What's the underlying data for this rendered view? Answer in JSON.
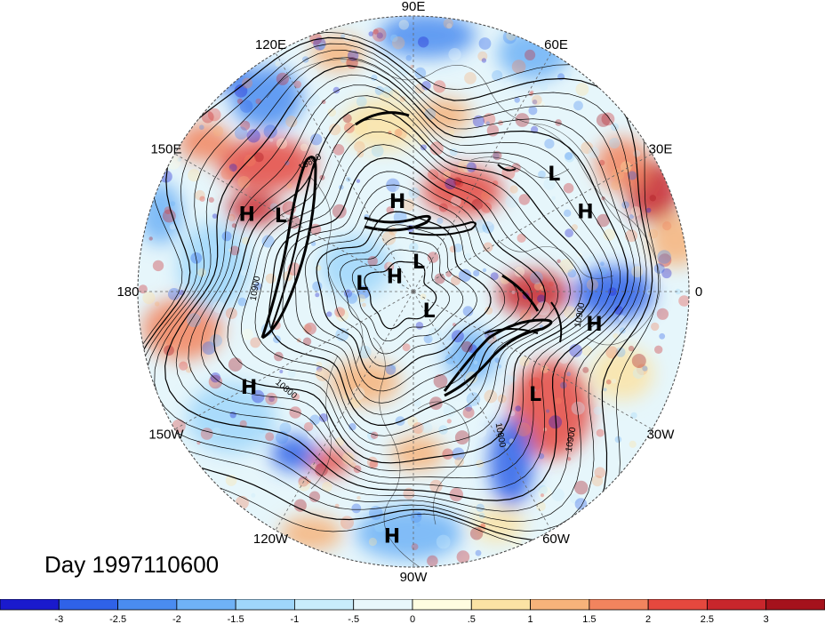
{
  "title": "Day 1997110600",
  "longitude_labels": [
    "90E",
    "60E",
    "30E",
    "0",
    "30W",
    "60W",
    "90W",
    "120W",
    "150W",
    "180",
    "150E",
    "120E"
  ],
  "pressure_centers": [
    {
      "type": "H",
      "lon": 100,
      "lat": 60
    },
    {
      "type": "L",
      "lon": 40,
      "lat": 30
    },
    {
      "type": "H",
      "lon": 25,
      "lat": 28
    },
    {
      "type": "L",
      "lon": 150,
      "lat": 40
    },
    {
      "type": "H",
      "lon": 155,
      "lat": 30
    },
    {
      "type": "L",
      "lon": 80,
      "lat": 80
    },
    {
      "type": "L",
      "lon": 170,
      "lat": 73
    },
    {
      "type": "H",
      "lon": 140,
      "lat": 82
    },
    {
      "type": "L",
      "lon": -50,
      "lat": 82
    },
    {
      "type": "H",
      "lon": -10,
      "lat": 30
    },
    {
      "type": "L",
      "lon": -40,
      "lat": 38
    },
    {
      "type": "H",
      "lon": -150,
      "lat": 28
    },
    {
      "type": "H",
      "lon": -95,
      "lat": 10
    }
  ],
  "contour_labels": [
    "10800",
    "10900",
    "10800",
    "10900",
    "10800",
    "10900"
  ],
  "colorbar": {
    "ticks": [
      "-3",
      "-2.5",
      "-2",
      "-1.5",
      "-1",
      "-.5",
      "0",
      ".5",
      "1",
      "1.5",
      "2",
      "2.5",
      "3"
    ],
    "colors": [
      "#1a1acd",
      "#2f62e8",
      "#4a8cf0",
      "#6fb2f6",
      "#9fd6fa",
      "#c8ecfb",
      "#e8f7fb",
      "#fffde0",
      "#fbe3a4",
      "#f7b37a",
      "#f2845e",
      "#e5483e",
      "#c8262c",
      "#a5121c"
    ]
  }
}
